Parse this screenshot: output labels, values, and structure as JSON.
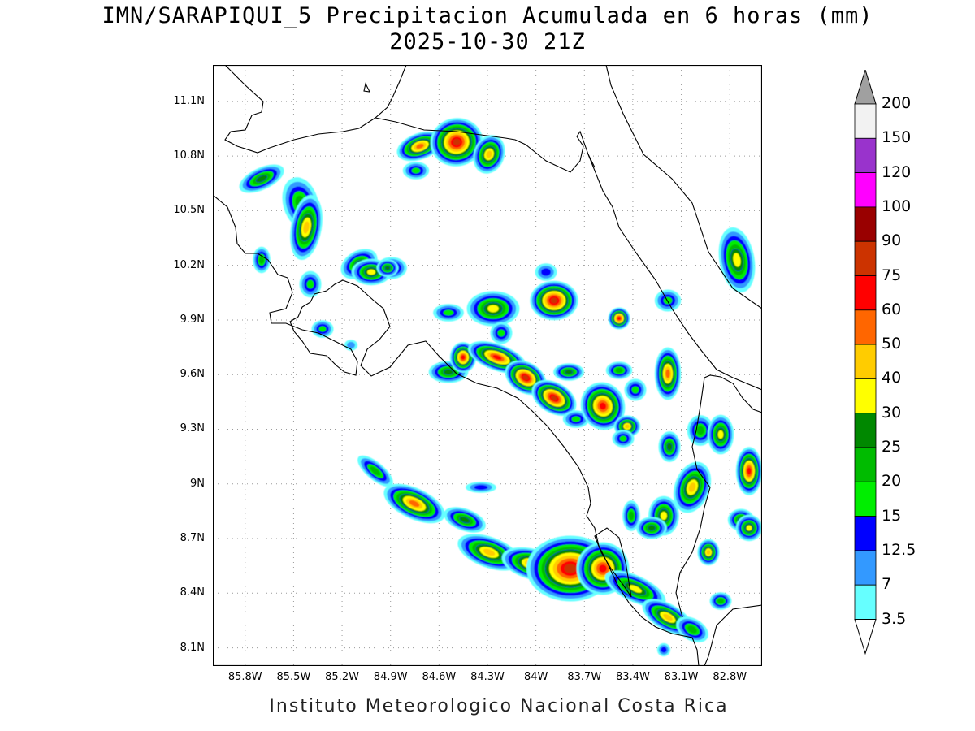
{
  "title_line1": "IMN/SARAPIQUI_5 Precipitacion Acumulada en 6 horas (mm)",
  "title_line2": "2025-10-30 21Z",
  "footer": "Instituto Meteorologico Nacional Costa Rica",
  "map": {
    "lon_range": [
      -86.0,
      -82.6
    ],
    "lat_range": [
      8.0,
      11.3
    ],
    "x_ticks": [
      "85.8W",
      "85.5W",
      "85.2W",
      "84.9W",
      "84.6W",
      "84.3W",
      "84W",
      "83.7W",
      "83.4W",
      "83.1W",
      "82.8W"
    ],
    "x_tick_values": [
      -85.8,
      -85.5,
      -85.2,
      -84.9,
      -84.6,
      -84.3,
      -84.0,
      -83.7,
      -83.4,
      -83.1,
      -82.8
    ],
    "y_ticks": [
      "11.1N",
      "10.8N",
      "10.5N",
      "10.2N",
      "9.9N",
      "9.6N",
      "9.3N",
      "9N",
      "8.7N",
      "8.4N",
      "8.1N"
    ],
    "y_tick_values": [
      11.1,
      10.8,
      10.5,
      10.2,
      9.9,
      9.6,
      9.3,
      9.0,
      8.7,
      8.4,
      8.1
    ],
    "grid": "dotted"
  },
  "colorbar": {
    "labels": [
      "200",
      "150",
      "120",
      "100",
      "90",
      "75",
      "60",
      "50",
      "40",
      "30",
      "25",
      "20",
      "15",
      "12.5",
      "7",
      "3.5"
    ],
    "colors": [
      "#f2f2f2",
      "#9933cc",
      "#ff00ff",
      "#990000",
      "#cc3300",
      "#ff0000",
      "#ff6600",
      "#ffcc00",
      "#ffff00",
      "#008800",
      "#00bb00",
      "#00ee00",
      "#0000ff",
      "#3399ff",
      "#66ffff"
    ],
    "over_color": "#a0a0a0",
    "under_color": "#ffffff"
  }
}
